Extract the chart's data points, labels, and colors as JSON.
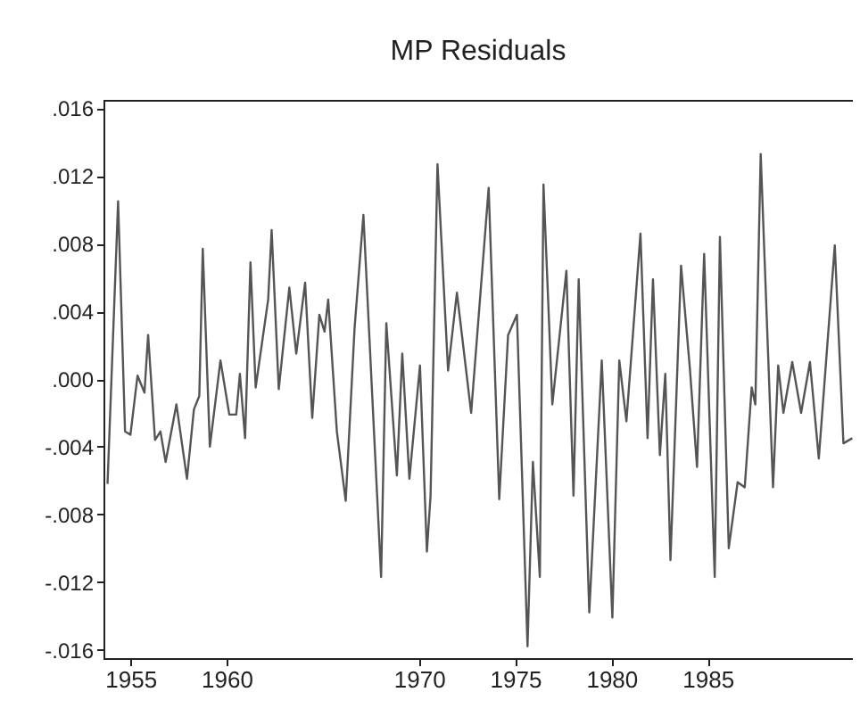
{
  "chart_data": {
    "type": "line",
    "title": "MP Residuals",
    "x": [
      1953.81,
      1954.36,
      1954.72,
      1955.0,
      1955.37,
      1955.73,
      1955.92,
      1956.28,
      1956.56,
      1956.83,
      1957.39,
      1957.94,
      1958.3,
      1958.58,
      1958.76,
      1959.13,
      1959.68,
      1960.14,
      1960.5,
      1960.69,
      1960.96,
      1961.24,
      1961.51,
      1962.16,
      1962.34,
      1962.71,
      1963.26,
      1963.62,
      1964.08,
      1964.45,
      1964.82,
      1965.09,
      1965.28,
      1965.73,
      1966.19,
      1966.65,
      1967.11,
      1968.03,
      1968.3,
      1968.85,
      1969.13,
      1969.5,
      1970.05,
      1970.41,
      1970.6,
      1970.96,
      1971.51,
      1971.97,
      1972.71,
      1973.62,
      1974.17,
      1974.63,
      1975.09,
      1975.64,
      1975.92,
      1976.28,
      1976.47,
      1976.93,
      1977.66,
      1978.03,
      1978.3,
      1978.85,
      1979.5,
      1980.05,
      1980.41,
      1980.78,
      1981.51,
      1981.88,
      1982.16,
      1982.52,
      1982.8,
      1983.07,
      1983.62,
      1984.08,
      1984.45,
      1984.82,
      1985.37,
      1985.64,
      1986.1,
      1986.56,
      1986.93,
      1987.29,
      1987.48,
      1987.76,
      1988.4,
      1988.67,
      1988.94,
      1989.4,
      1989.86,
      1990.32,
      1990.78,
      1991.61,
      1992.06,
      1992.52
    ],
    "series": [
      {
        "color": "#555555",
        "values": [
          -0.0062,
          0.0105,
          -0.0031,
          -0.0033,
          0.0002,
          -0.0008,
          0.0026,
          -0.0036,
          -0.0031,
          -0.0049,
          -0.0015,
          -0.0059,
          -0.0018,
          -0.001,
          0.0077,
          -0.004,
          0.0011,
          -0.0021,
          -0.0021,
          0.0003,
          -0.0035,
          0.0069,
          -0.0005,
          0.0047,
          0.0088,
          -0.0006,
          0.0054,
          0.0015,
          0.0057,
          -0.0023,
          0.0038,
          0.0028,
          0.0047,
          -0.0031,
          -0.0072,
          0.003,
          0.0097,
          -0.0117,
          0.0033,
          -0.0057,
          0.0015,
          -0.0059,
          0.0008,
          -0.0102,
          -0.0069,
          0.0127,
          0.0005,
          0.0051,
          -0.002,
          0.0113,
          -0.0071,
          0.0026,
          0.0038,
          -0.0158,
          -0.0049,
          -0.0117,
          0.0115,
          -0.0015,
          0.0064,
          -0.0069,
          0.0059,
          -0.0138,
          0.0011,
          -0.0141,
          0.0011,
          -0.0025,
          0.0086,
          -0.0035,
          0.0059,
          -0.0045,
          0.0003,
          -0.0107,
          0.0067,
          0.0006,
          -0.0052,
          0.0074,
          -0.0117,
          0.0084,
          -0.01,
          -0.0061,
          -0.0064,
          -0.0005,
          -0.0015,
          0.0133,
          -0.0064,
          0.0008,
          -0.002,
          0.001,
          -0.002,
          0.001,
          -0.0047,
          0.0079,
          -0.0038,
          -0.0035
        ]
      }
    ],
    "xlim": [
      1953.6,
      1992.55
    ],
    "xticks": [
      1955,
      1960,
      1970,
      1975,
      1980,
      1985
    ],
    "ylim": [
      -0.0165,
      0.0165
    ],
    "yticks": [
      {
        "value": -0.016,
        "label": "-.016"
      },
      {
        "value": -0.012,
        "label": "-.012"
      },
      {
        "value": -0.008,
        "label": "-.008"
      },
      {
        "value": -0.004,
        "label": "-.004"
      },
      {
        "value": 0,
        "label": ".000"
      },
      {
        "value": 0.004,
        "label": ".004"
      },
      {
        "value": 0.008,
        "label": ".008"
      },
      {
        "value": 0.012,
        "label": ".012"
      },
      {
        "value": 0.016,
        "label": ".016"
      }
    ],
    "grid": false
  }
}
